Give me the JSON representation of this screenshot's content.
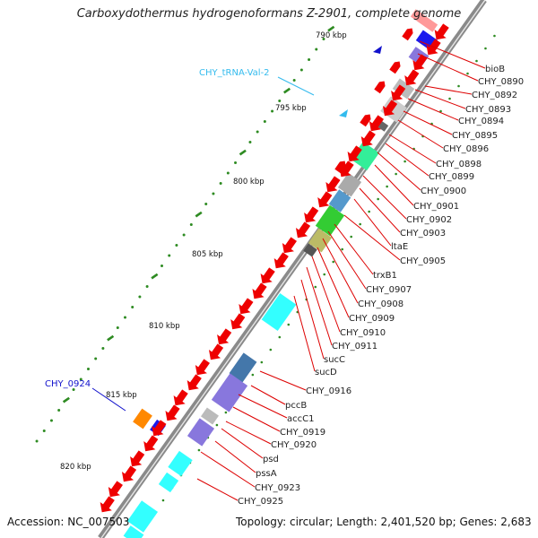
{
  "title": "Carboxydothermus hydrogenoformans Z-2901, complete genome",
  "accession": "Accession: NC_007503",
  "summary": "Topology: circular; Length: 2,401,520 bp; Genes: 2,683",
  "colors": {
    "gene_label": "#dd0000",
    "trna_label": "#33bbee",
    "misc_label": "#1111cc",
    "backbone": "#8a8a8a"
  },
  "scale": [
    {
      "label": "790 kbp"
    },
    {
      "label": "795 kbp"
    },
    {
      "label": "800 kbp"
    },
    {
      "label": "805 kbp"
    },
    {
      "label": "810 kbp"
    },
    {
      "label": "815 kbp"
    },
    {
      "label": "820 kbp"
    }
  ],
  "features": [
    {
      "label": "CHY_tRNA-Val-2",
      "kind": "trna"
    },
    {
      "label": "CHY_0924",
      "kind": "misc"
    }
  ],
  "genes": [
    {
      "label": "bioB"
    },
    {
      "label": "CHY_0890"
    },
    {
      "label": "CHY_0892"
    },
    {
      "label": "CHY_0893"
    },
    {
      "label": "CHY_0894"
    },
    {
      "label": "CHY_0895"
    },
    {
      "label": "CHY_0896"
    },
    {
      "label": "CHY_0898"
    },
    {
      "label": "CHY_0899"
    },
    {
      "label": "CHY_0900"
    },
    {
      "label": "CHY_0901"
    },
    {
      "label": "CHY_0902"
    },
    {
      "label": "CHY_0903"
    },
    {
      "label": "ltaE"
    },
    {
      "label": "CHY_0905"
    },
    {
      "label": "trxB1"
    },
    {
      "label": "CHY_0907"
    },
    {
      "label": "CHY_0908"
    },
    {
      "label": "CHY_0909"
    },
    {
      "label": "CHY_0910"
    },
    {
      "label": "CHY_0911"
    },
    {
      "label": "sucC"
    },
    {
      "label": "sucD"
    },
    {
      "label": "CHY_0916"
    },
    {
      "label": "pccB"
    },
    {
      "label": "accC1"
    },
    {
      "label": "CHY_0919"
    },
    {
      "label": "CHY_0920"
    },
    {
      "label": "psd"
    },
    {
      "label": "pssA"
    },
    {
      "label": "CHY_0923"
    },
    {
      "label": "CHY_0925"
    }
  ]
}
